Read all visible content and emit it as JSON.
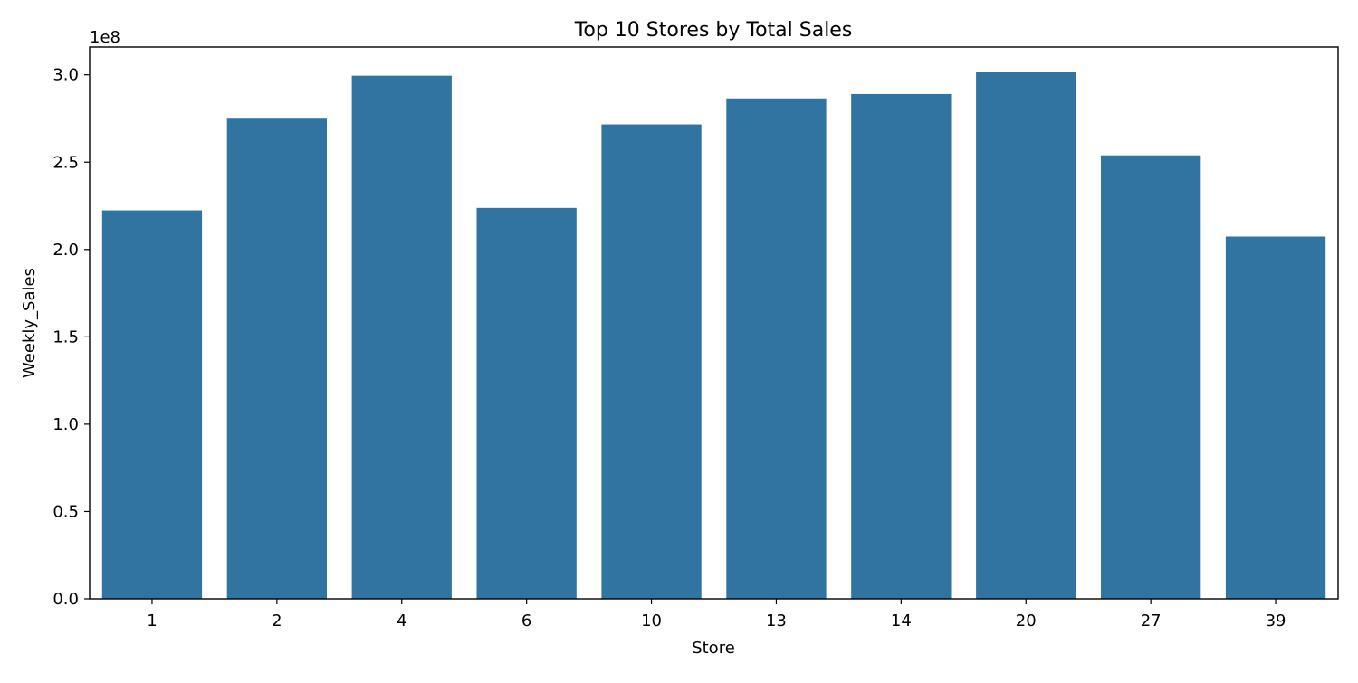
{
  "chart_data": {
    "type": "bar",
    "title": "Top 10 Stores by Total Sales",
    "xlabel": "Store",
    "ylabel": "Weekly_Sales",
    "y_offset_label": "1e8",
    "categories": [
      "1",
      "2",
      "4",
      "6",
      "10",
      "13",
      "14",
      "20",
      "27",
      "39"
    ],
    "values": [
      222400000,
      275400000,
      299500000,
      223800000,
      271600000,
      286500000,
      288999000,
      301400000,
      253900000,
      207400000
    ],
    "ylim": [
      0,
      315900000
    ],
    "yticks": [
      0,
      50000000,
      100000000,
      150000000,
      200000000,
      250000000,
      300000000
    ],
    "ytick_labels": [
      "0.0",
      "0.5",
      "1.0",
      "1.5",
      "2.0",
      "2.5",
      "3.0"
    ],
    "grid": false,
    "bar_color": "#3274a1"
  }
}
